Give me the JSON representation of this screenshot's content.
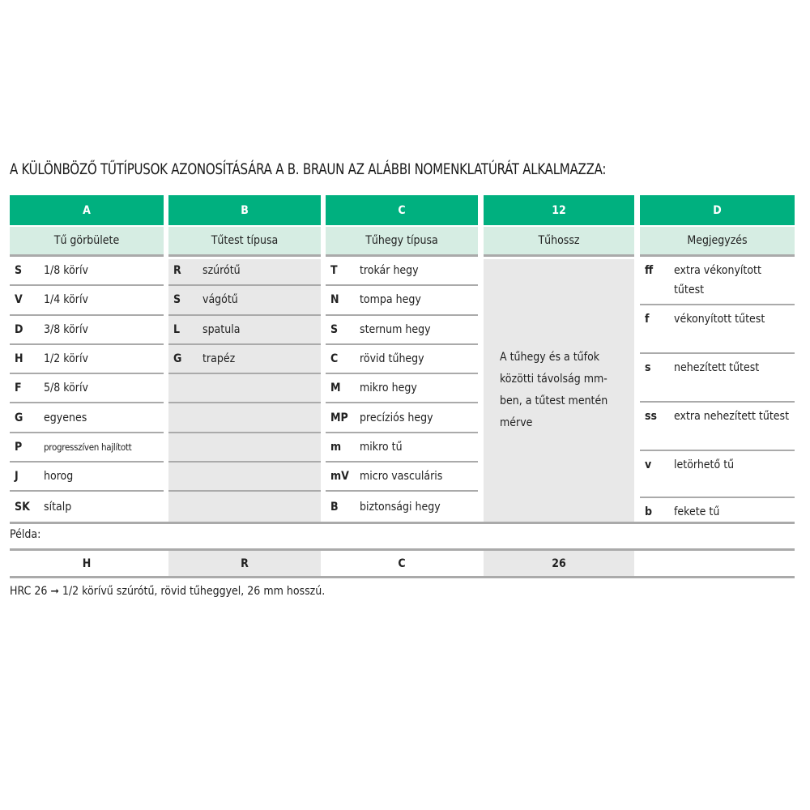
{
  "title": "A KÜLÖNBÖZŐ TŰTÍPUSOK AZONOSÍTÁSÁRA A B. BRAUN AZ ALÁBBI NOMENKLATÚRÁT ALKALMAZZA:",
  "colors": {
    "header": "#00b07f",
    "subheader": "#d6ede3",
    "gray": "#e8e8e8"
  },
  "columns": [
    {
      "key": "A",
      "label": "Tű görbülete",
      "rows": [
        {
          "code": "S",
          "text": "1/8 körív"
        },
        {
          "code": "V",
          "text": "1/4 körív"
        },
        {
          "code": "D",
          "text": "3/8 körív"
        },
        {
          "code": "H",
          "text": "1/2 körív"
        },
        {
          "code": "F",
          "text": "5/8 körív"
        },
        {
          "code": "G",
          "text": "egyenes"
        },
        {
          "code": "P",
          "text": "progresszíven hajlított"
        },
        {
          "code": "J",
          "text": "horog"
        },
        {
          "code": "SK",
          "text": "sítalp"
        }
      ]
    },
    {
      "key": "B",
      "label": "Tűtest típusa",
      "rows": [
        {
          "code": "R",
          "text": "szúrótű"
        },
        {
          "code": "S",
          "text": "vágótű"
        },
        {
          "code": "L",
          "text": "spatula"
        },
        {
          "code": "G",
          "text": "trapéz"
        }
      ]
    },
    {
      "key": "C",
      "label": "Tűhegy típusa",
      "rows": [
        {
          "code": "T",
          "text": "trokár hegy"
        },
        {
          "code": "N",
          "text": "tompa hegy"
        },
        {
          "code": "S",
          "text": "sternum hegy"
        },
        {
          "code": "C",
          "text": "rövid tűhegy"
        },
        {
          "code": "M",
          "text": "mikro hegy"
        },
        {
          "code": "MP",
          "text": "precíziós hegy"
        },
        {
          "code": "m",
          "text": "mikro tű"
        },
        {
          "code": "mV",
          "text": "micro vasculáris"
        },
        {
          "code": "B",
          "text": "biztonsági hegy"
        }
      ]
    },
    {
      "key": "12",
      "label": "Tűhossz",
      "note": "A tűhegy és a tűfok közötti távolság mm-ben, a tűtest mentén mérve"
    },
    {
      "key": "D",
      "label": "Megjegyzés",
      "rows": [
        {
          "code": "ff",
          "text": "extra vékonyított tűtest"
        },
        {
          "code": "f",
          "text": "vékonyított tűtest"
        },
        {
          "code": "s",
          "text": "nehezített tűtest"
        },
        {
          "code": "ss",
          "text": "extra nehezített tűtest"
        },
        {
          "code": "v",
          "text": "letörhető tű"
        },
        {
          "code": "b",
          "text": "fekete tű"
        }
      ]
    }
  ],
  "example": {
    "label": "Példa:",
    "values": [
      "H",
      "R",
      "C",
      "26",
      ""
    ],
    "explanation": "HRC 26 ➞ 1/2 körívű szúrótű, rövid tűheggyel, 26 mm hosszú."
  }
}
